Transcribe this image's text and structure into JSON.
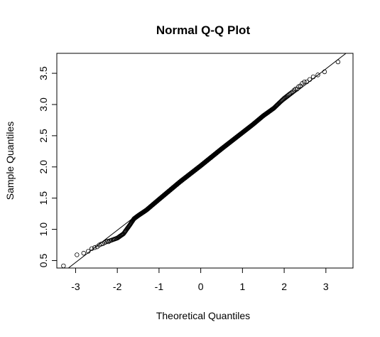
{
  "chart_data": {
    "type": "scatter",
    "title": "Normal Q-Q Plot",
    "xlabel": "Theoretical Quantiles",
    "ylabel": "Sample Quantiles",
    "xlim": [
      -3.45,
      3.65
    ],
    "ylim": [
      0.38,
      3.82
    ],
    "x_ticks": [
      -3,
      -2,
      -1,
      0,
      1,
      2,
      3
    ],
    "x_tick_labels": [
      "-3",
      "-2",
      "-1",
      "0",
      "1",
      "2",
      "3"
    ],
    "y_ticks": [
      0.5,
      1.0,
      1.5,
      2.0,
      2.5,
      3.0,
      3.5
    ],
    "y_tick_labels": [
      "0.5",
      "1.0",
      "1.5",
      "2.0",
      "2.5",
      "3.0",
      "3.5"
    ],
    "reference_line": {
      "slope": 0.517,
      "intercept": 2.02
    },
    "sample_size": 1000,
    "curve": [
      {
        "x": -3.29,
        "y": 0.43
      },
      {
        "x": -3.0,
        "y": 0.57
      },
      {
        "x": -2.75,
        "y": 0.64
      },
      {
        "x": -2.5,
        "y": 0.72
      },
      {
        "x": -2.25,
        "y": 0.8
      },
      {
        "x": -2.0,
        "y": 0.86
      },
      {
        "x": -1.85,
        "y": 0.93
      },
      {
        "x": -1.7,
        "y": 1.07
      },
      {
        "x": -1.6,
        "y": 1.17
      },
      {
        "x": -1.5,
        "y": 1.22
      },
      {
        "x": -1.3,
        "y": 1.31
      },
      {
        "x": -1.0,
        "y": 1.48
      },
      {
        "x": -0.5,
        "y": 1.76
      },
      {
        "x": 0.0,
        "y": 2.02
      },
      {
        "x": 0.5,
        "y": 2.29
      },
      {
        "x": 1.0,
        "y": 2.55
      },
      {
        "x": 1.25,
        "y": 2.68
      },
      {
        "x": 1.5,
        "y": 2.82
      },
      {
        "x": 1.75,
        "y": 2.94
      },
      {
        "x": 2.0,
        "y": 3.1
      },
      {
        "x": 2.25,
        "y": 3.23
      },
      {
        "x": 2.5,
        "y": 3.36
      },
      {
        "x": 2.75,
        "y": 3.45
      },
      {
        "x": 3.0,
        "y": 3.53
      },
      {
        "x": 3.29,
        "y": 3.68
      }
    ],
    "grid": false
  }
}
